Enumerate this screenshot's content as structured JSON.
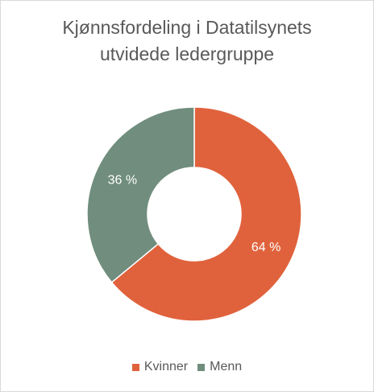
{
  "chart_data": {
    "type": "pie",
    "title_lines": [
      "Kjønnsfordeling i Datatilsynets",
      "utvidede ledergruppe"
    ],
    "categories": [
      "Kvinner",
      "Menn"
    ],
    "values": [
      64,
      36
    ],
    "data_labels": [
      "64 %",
      "36 %"
    ],
    "colors": [
      "#e0623c",
      "#708d7d"
    ],
    "donut": true,
    "legend_position": "bottom"
  }
}
